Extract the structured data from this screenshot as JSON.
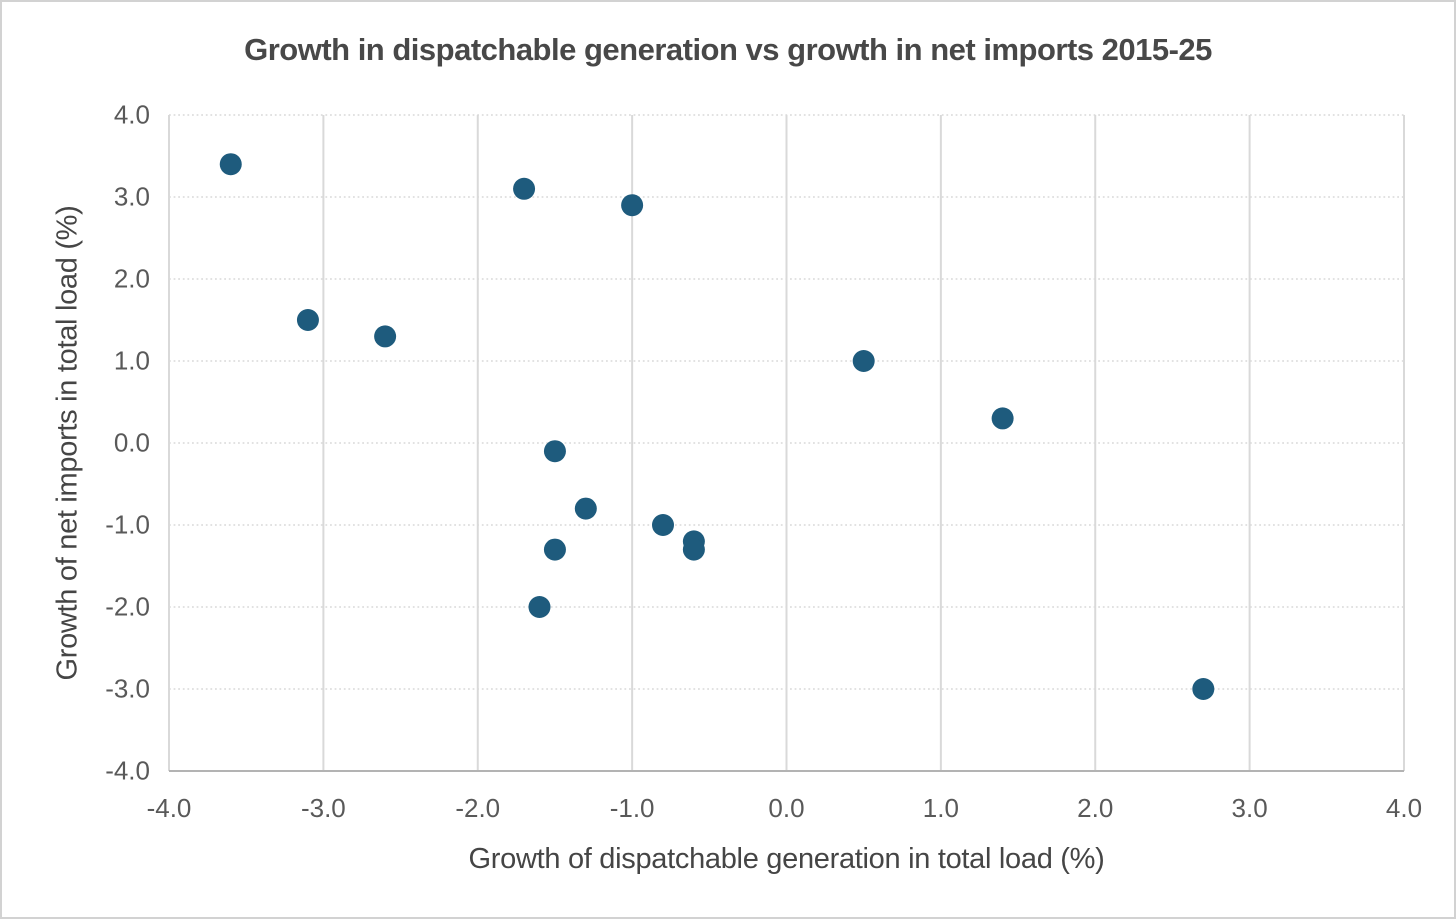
{
  "chart_data": {
    "type": "scatter",
    "title": "Growth in dispatchable generation vs growth in net imports 2015-25",
    "xlabel": "Growth of dispatchable generation in total load (%)",
    "ylabel": "Growth of net imports in total load (%)",
    "xlim": [
      -4.0,
      4.0
    ],
    "ylim": [
      -4.0,
      4.0
    ],
    "x_tick_values": [
      -4,
      -3,
      -2,
      -1,
      0,
      1,
      2,
      3,
      4
    ],
    "x_tick_labels": [
      "-4.0",
      "-3.0",
      "-2.0",
      "-1.0",
      "0.0",
      "1.0",
      "2.0",
      "3.0",
      "4.0"
    ],
    "y_tick_values": [
      4,
      3,
      2,
      1,
      0,
      -1,
      -2,
      -3,
      -4
    ],
    "y_tick_labels": [
      "4.0",
      "3.0",
      "2.0",
      "1.0",
      "0.0",
      "-1.0",
      "-2.0",
      "-3.0",
      "-4.0"
    ],
    "grid": {
      "vertical_style": "solid",
      "horizontal_style": "dotted"
    },
    "legend_position": "none",
    "series": [
      {
        "marker": "circle",
        "color": "#1e5b7d",
        "points": [
          {
            "x": -3.6,
            "y": 3.4
          },
          {
            "x": -3.1,
            "y": 1.5
          },
          {
            "x": -2.6,
            "y": 1.3
          },
          {
            "x": -1.7,
            "y": 3.1
          },
          {
            "x": -1.0,
            "y": 2.9
          },
          {
            "x": -1.5,
            "y": -0.1
          },
          {
            "x": -1.3,
            "y": -0.8
          },
          {
            "x": -1.5,
            "y": -1.3
          },
          {
            "x": -1.6,
            "y": -2.0
          },
          {
            "x": -0.8,
            "y": -1.0
          },
          {
            "x": -0.6,
            "y": -1.2
          },
          {
            "x": -0.6,
            "y": -1.3
          },
          {
            "x": 0.5,
            "y": 1.0
          },
          {
            "x": 1.4,
            "y": 0.3
          },
          {
            "x": 2.7,
            "y": -3.0
          }
        ]
      }
    ]
  },
  "colors": {
    "point": "#1e5b7d",
    "grid": "#d9d9d9",
    "axis_line": "#b3b3b3",
    "tick_text": "#595959",
    "axis_title_text": "#454545",
    "title_text": "#484848",
    "background": "#ffffff",
    "border": "#d2d2d2"
  }
}
